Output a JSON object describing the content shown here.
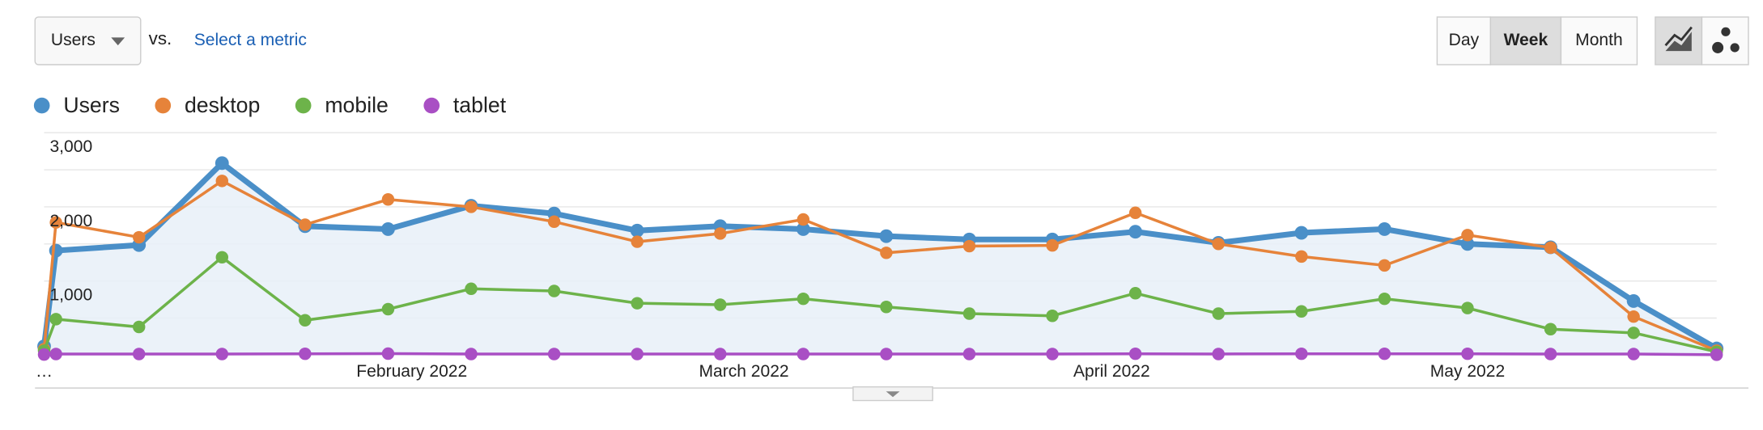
{
  "controls": {
    "metric": "Users",
    "vs": "vs.",
    "select": "Select a metric",
    "periods": [
      "Day",
      "Week",
      "Month"
    ],
    "active_period": 1
  },
  "chart_data": {
    "type": "line",
    "x": [
      1,
      2,
      9,
      16,
      23,
      30,
      37,
      44,
      51,
      58,
      65,
      72,
      79,
      86,
      93,
      100,
      107,
      114,
      121,
      128,
      135,
      142
    ],
    "xlim": [
      1,
      142
    ],
    "xticks": [
      {
        "value": 1,
        "label": "…"
      },
      {
        "value": 32,
        "label": "February 2022"
      },
      {
        "value": 60,
        "label": "March 2022"
      },
      {
        "value": 91,
        "label": "April 2022"
      },
      {
        "value": 121,
        "label": "May 2022"
      }
    ],
    "ylim": [
      0,
      3000
    ],
    "yticks": [
      {
        "value": 1000,
        "label": "1,000"
      },
      {
        "value": 2000,
        "label": "2,000"
      },
      {
        "value": 3000,
        "label": "3,000"
      }
    ],
    "ygrid": [
      500,
      1000,
      1500,
      2000,
      2500,
      3000
    ],
    "series": [
      {
        "name": "Users",
        "color": "#4a8fc8",
        "area": true,
        "values": [
          120,
          1410,
          1485,
          2590,
          1740,
          1700,
          2015,
          1910,
          1680,
          1740,
          1700,
          1605,
          1560,
          1560,
          1665,
          1515,
          1650,
          1700,
          1500,
          1455,
          730,
          90
        ]
      },
      {
        "name": "desktop",
        "color": "#e6833a",
        "values": [
          80,
          1790,
          1590,
          2350,
          1760,
          2100,
          2000,
          1800,
          1530,
          1640,
          1830,
          1380,
          1470,
          1480,
          1920,
          1500,
          1330,
          1210,
          1620,
          1450,
          520,
          60
        ]
      },
      {
        "name": "mobile",
        "color": "#6db34a",
        "values": [
          60,
          485,
          380,
          1320,
          470,
          620,
          895,
          865,
          700,
          680,
          760,
          650,
          560,
          530,
          835,
          560,
          590,
          760,
          635,
          350,
          300,
          45
        ]
      },
      {
        "name": "tablet",
        "color": "#a94fc4",
        "values": [
          8,
          15,
          15,
          15,
          18,
          20,
          15,
          15,
          15,
          15,
          15,
          15,
          15,
          15,
          18,
          15,
          18,
          18,
          18,
          15,
          15,
          5
        ]
      }
    ]
  }
}
